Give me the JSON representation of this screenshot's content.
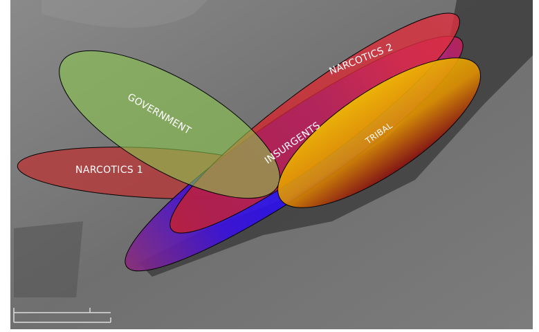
{
  "ellipses": [
    {
      "label": "NARCOTICS 1"
    },
    {
      "label": "INSURGENTS"
    },
    {
      "label": "NARCOTICS 2"
    },
    {
      "label": "GOVERNMENT"
    },
    {
      "label": "TRIBAL"
    }
  ]
}
